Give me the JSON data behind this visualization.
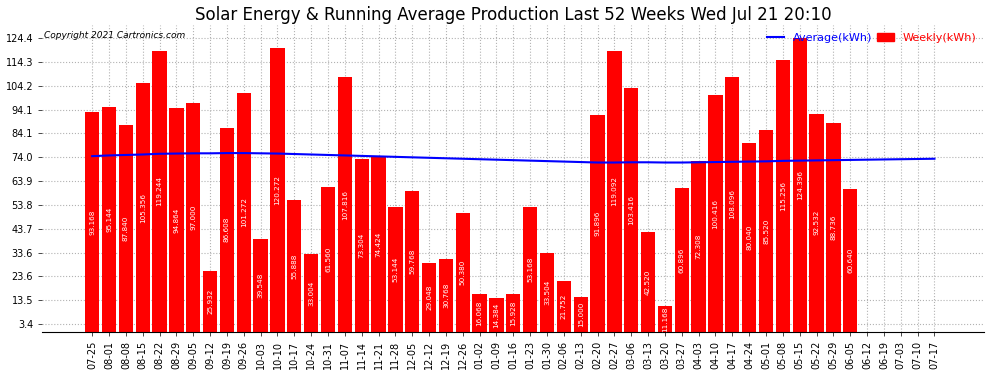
{
  "title": "Solar Energy & Running Average Production Last 52 Weeks Wed Jul 21 20:10",
  "copyright": "Copyright 2021 Cartronics.com",
  "legend_avg": "Average(kWh)",
  "legend_weekly": "Weekly(kWh)",
  "bar_color": "#FF0000",
  "avg_line_color": "#0000FF",
  "background_color": "#FFFFFF",
  "plot_bg_color": "#FFFFFF",
  "grid_color": "#AAAAAA",
  "categories": [
    "07-25",
    "08-01",
    "08-08",
    "08-15",
    "08-22",
    "08-29",
    "09-05",
    "09-12",
    "09-19",
    "09-26",
    "10-03",
    "10-10",
    "10-17",
    "10-24",
    "10-31",
    "11-07",
    "11-14",
    "11-21",
    "11-28",
    "12-05",
    "12-12",
    "12-19",
    "12-26",
    "01-02",
    "01-09",
    "01-16",
    "01-23",
    "01-30",
    "02-06",
    "02-13",
    "02-20",
    "02-27",
    "03-06",
    "03-13",
    "03-20",
    "03-27",
    "04-03",
    "04-10",
    "04-17",
    "04-24",
    "05-01",
    "05-08",
    "05-15",
    "05-22",
    "05-29",
    "06-05",
    "06-12",
    "06-19",
    "07-03",
    "07-10",
    "07-17"
  ],
  "weekly_values": [
    93.168,
    95.144,
    87.84,
    105.356,
    119.244,
    94.864,
    97.0,
    25.932,
    86.608,
    101.272,
    39.548,
    120.272,
    55.888,
    33.004,
    61.56,
    107.816,
    73.304,
    74.424,
    53.144,
    59.768,
    29.048,
    30.768,
    50.38,
    16.068,
    14.384,
    15.928,
    53.168,
    33.504,
    21.752,
    15.0,
    91.896,
    119.092,
    103.416,
    42.52,
    11.168,
    60.896,
    72.308,
    100.416,
    108.096,
    80.04,
    85.52,
    115.256,
    124.396,
    92.532,
    88.736,
    60.64,
    0,
    0,
    0,
    0,
    0
  ],
  "avg_values": [
    74.5,
    74.8,
    75.0,
    75.2,
    75.5,
    75.6,
    75.7,
    75.7,
    75.8,
    75.8,
    75.7,
    75.6,
    75.4,
    75.2,
    75.0,
    74.8,
    74.6,
    74.4,
    74.2,
    74.0,
    73.8,
    73.6,
    73.4,
    73.2,
    73.0,
    72.8,
    72.6,
    72.4,
    72.2,
    72.0,
    71.8,
    71.8,
    71.9,
    71.9,
    71.8,
    71.8,
    71.9,
    72.0,
    72.1,
    72.2,
    72.3,
    72.5,
    72.6,
    72.7,
    72.8,
    72.9,
    73.0,
    73.1,
    73.2,
    73.3,
    73.4
  ],
  "yticks": [
    3.4,
    13.5,
    23.6,
    33.6,
    43.7,
    53.8,
    63.9,
    74.0,
    84.1,
    94.1,
    104.2,
    114.3,
    124.4
  ],
  "ylim": [
    0,
    130
  ],
  "title_fontsize": 12,
  "tick_fontsize": 7,
  "bar_label_fontsize": 5.2
}
